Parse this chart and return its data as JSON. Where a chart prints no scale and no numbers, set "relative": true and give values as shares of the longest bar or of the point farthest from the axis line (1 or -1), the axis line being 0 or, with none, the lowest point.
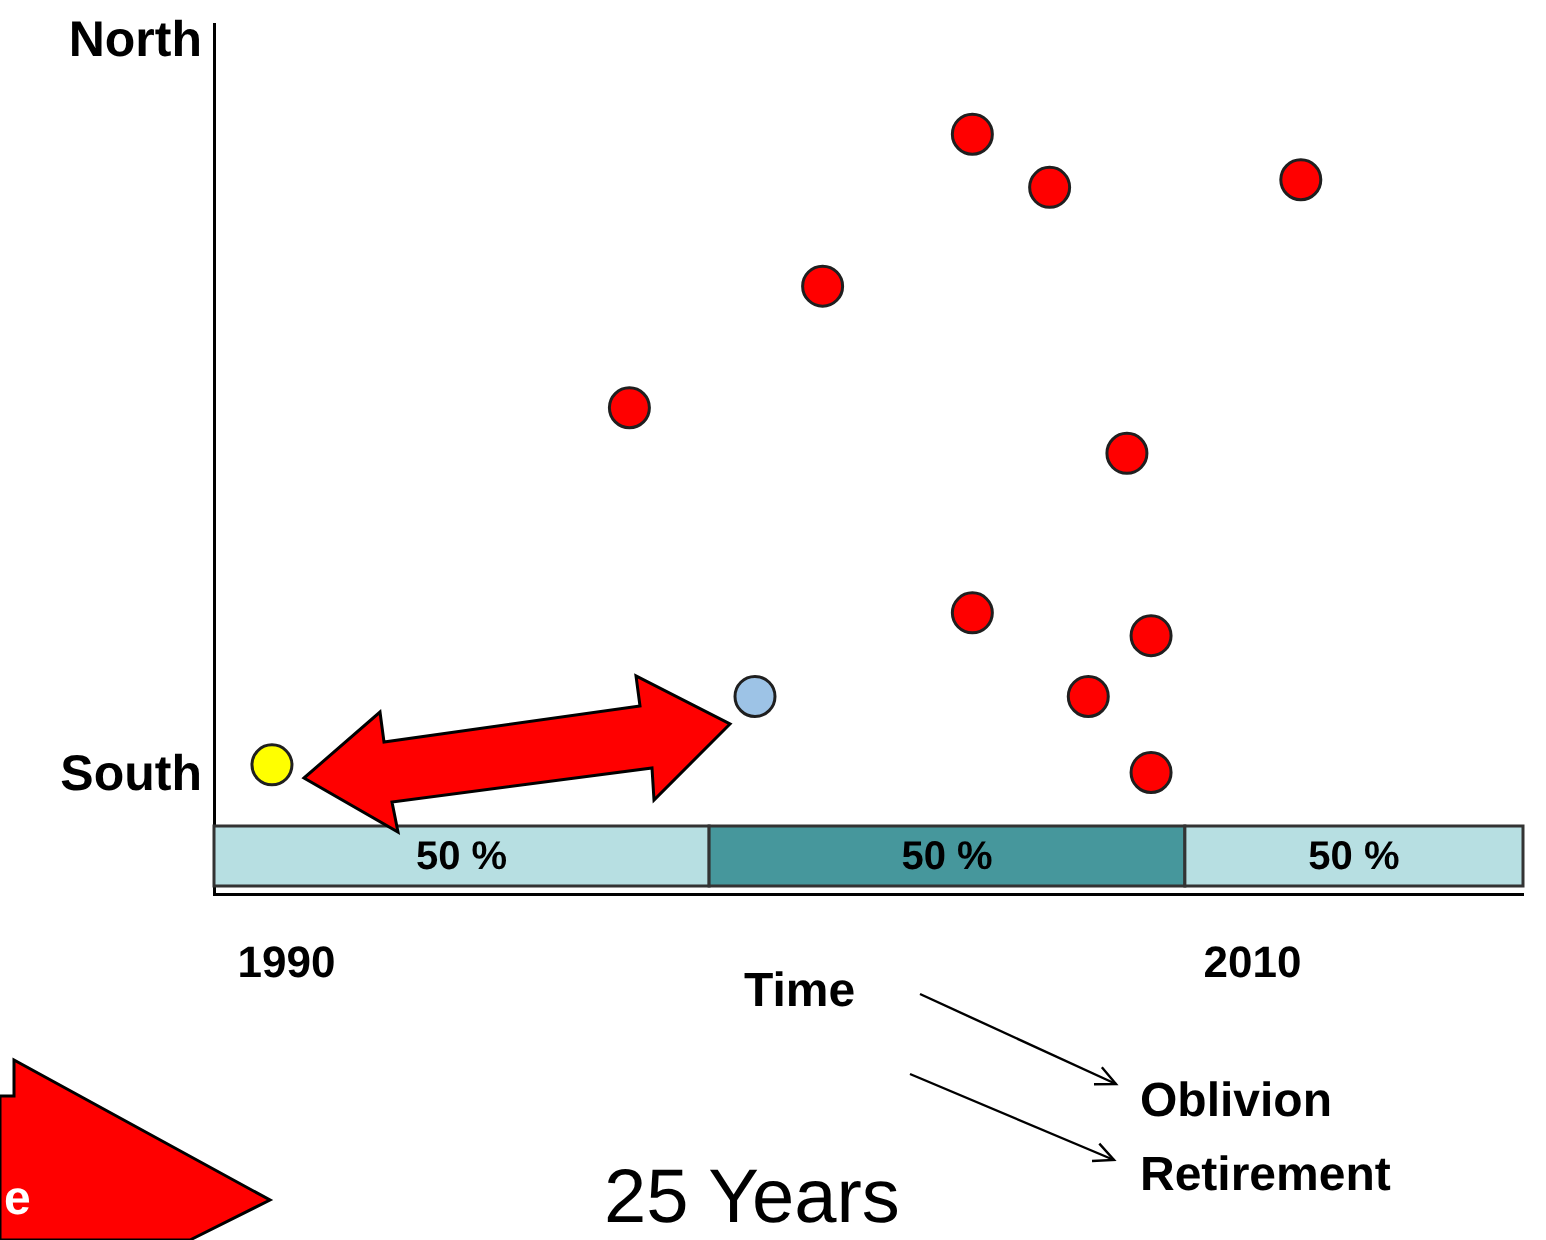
{
  "chart_data": {
    "type": "scatter",
    "xlim": [
      1988.5,
      2015.6
    ],
    "relative": true,
    "xticks": [
      1990,
      2010
    ],
    "series": [
      {
        "x": [
          2004.2,
          2005.8,
          2011.0,
          2001.1,
          1997.1,
          2007.4,
          2004.2,
          2007.9,
          2006.6,
          2007.9,
          1990.9,
          1989.7,
          1999.7
        ],
        "values": [
          1.0,
          0.93,
          0.94,
          0.8,
          0.64,
          0.58,
          0.37,
          0.34,
          0.26,
          0.16,
          null,
          0.17,
          0.26
        ],
        "colors": [
          "#ff0000",
          "#ff0000",
          "#ff0000",
          "#ff0000",
          "#ff0000",
          "#ff0000",
          "#ff0000",
          "#ff0000",
          "#ff0000",
          "#ff0000",
          "#ff0000",
          "#ffff00",
          "#9dc3e6"
        ]
      }
    ],
    "bands": [
      {
        "axis": "x",
        "from": 1988.5,
        "to": 1998.75,
        "label": "50 %",
        "color": "#b7dfe2"
      },
      {
        "axis": "x",
        "from": 1998.75,
        "to": 2008.6,
        "label": "50 %",
        "color": "#46979c"
      },
      {
        "axis": "x",
        "from": 2008.6,
        "to": 2015.6,
        "label": "50 %",
        "color": "#b7dfe2"
      }
    ],
    "annotations": [
      "North",
      "South",
      "Time",
      "Oblivion",
      "Retirement",
      "25 Years",
      "e"
    ],
    "marker": "circle",
    "grid": false,
    "legend": false
  }
}
